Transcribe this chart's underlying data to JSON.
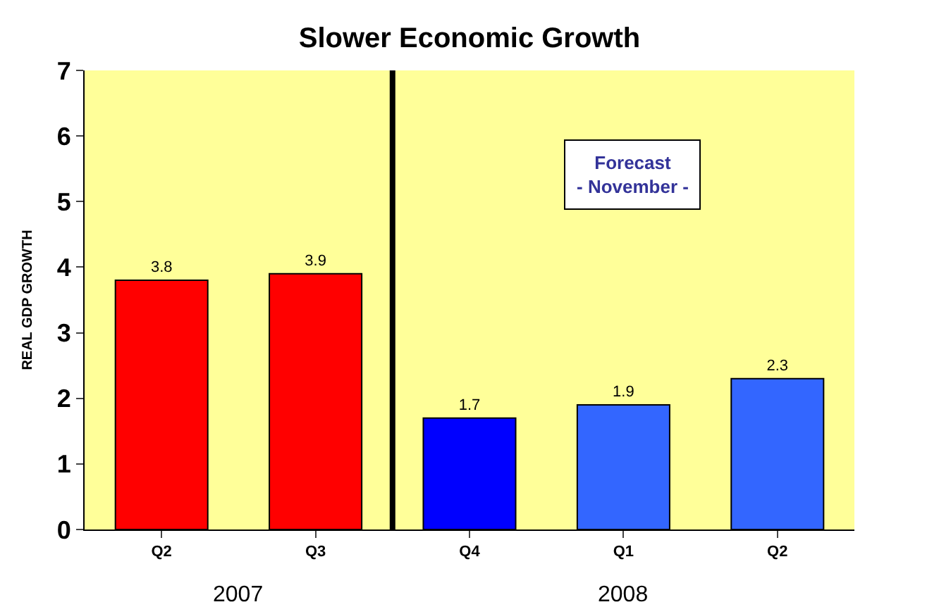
{
  "chart_data": {
    "type": "bar",
    "title": "Slower Economic Growth",
    "ylabel": "REAL GDP GROWTH",
    "categories": [
      "Q2",
      "Q3",
      "Q4",
      "Q1",
      "Q2"
    ],
    "values": [
      3.8,
      3.9,
      1.7,
      1.9,
      2.3
    ],
    "colors": [
      "#ff0000",
      "#ff0000",
      "#0000ff",
      "#3366ff",
      "#3366ff"
    ],
    "ylim": [
      0,
      7
    ],
    "yticks": [
      0,
      1,
      2,
      3,
      4,
      5,
      6,
      7
    ],
    "data_labels": true,
    "grid": false,
    "legend": false,
    "annotations": [
      "Forecast\n- November -",
      "2007",
      "2008"
    ]
  }
}
